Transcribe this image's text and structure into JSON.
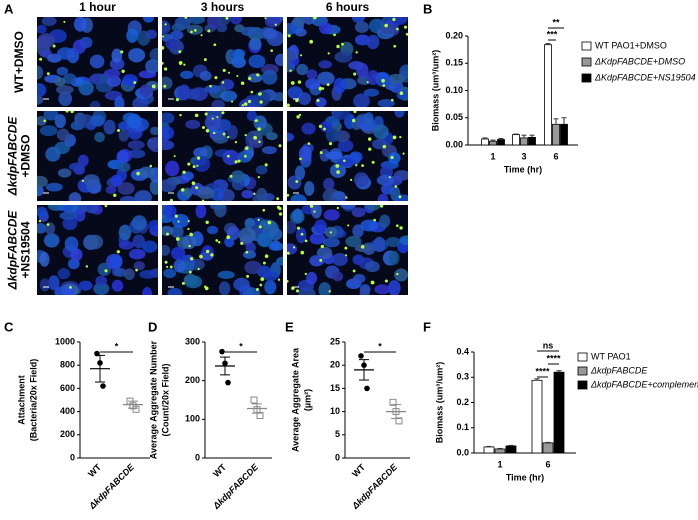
{
  "image_panel": {
    "panel_label": "A",
    "columns": [
      "1 hour",
      "3 hours",
      "6 hours"
    ],
    "rows": [
      [
        "WT+DMSO"
      ],
      [
        "ΔkdpFABCDE",
        "+DMSO"
      ],
      [
        "ΔkdpFABCDE",
        "+NS19504"
      ]
    ]
  },
  "chart_data": [
    {
      "type": "bar",
      "panel_label": "B",
      "ylabel": "Biomass (um³/um²)",
      "xlabel": "Time (hr)",
      "categories": [
        "1",
        "3",
        "6"
      ],
      "series": [
        {
          "name": "WT PAO1+DMSO",
          "color": "#ffffff",
          "values": [
            0.011,
            0.019,
            0.184
          ],
          "errors": [
            0.002,
            0.001,
            0.002
          ]
        },
        {
          "name": "ΔKdpFABCDE+DMSO",
          "color": "#999999",
          "values": [
            0.007,
            0.013,
            0.038
          ],
          "errors": [
            0.002,
            0.005,
            0.01
          ]
        },
        {
          "name": "ΔKdpFABCDE+NS19504",
          "color": "#000000",
          "values": [
            0.01,
            0.014,
            0.038
          ],
          "errors": [
            0.002,
            0.004,
            0.012
          ]
        }
      ],
      "ylim": [
        0,
        0.2
      ],
      "yticks": [
        {
          "value": 0,
          "label": "0.00"
        },
        0.05,
        {
          "value": 0.1,
          "label": "0.10"
        },
        0.15,
        {
          "value": 0.2,
          "label": "0.20"
        }
      ],
      "annotations": [
        "***",
        "**"
      ]
    },
    {
      "type": "dot",
      "panel_label": "C",
      "ylabel": [
        "Attachment",
        "(Bacteria/20x Field)"
      ],
      "categories": [
        "WT",
        "ΔkdpFABCDE"
      ],
      "colors": [
        "#000000",
        "#888888"
      ],
      "points": [
        [
          900,
          820,
          620
        ],
        [
          490,
          450,
          420
        ]
      ],
      "means": [
        770,
        460
      ],
      "sems": [
        115,
        30
      ],
      "ylim": [
        0,
        1000
      ],
      "yticks": [
        0,
        200,
        400,
        600,
        800,
        1000
      ],
      "annotations": [
        "*"
      ]
    },
    {
      "type": "dot",
      "panel_label": "D",
      "ylabel": [
        "Average Aggregate Number",
        "(Count/20x Field)"
      ],
      "categories": [
        "WT",
        "ΔkdpFABCDE"
      ],
      "colors": [
        "#000000",
        "#888888"
      ],
      "points": [
        [
          275,
          245,
          195
        ],
        [
          150,
          125,
          110
        ]
      ],
      "means": [
        238,
        128
      ],
      "sems": [
        23,
        12
      ],
      "ylim": [
        0,
        300
      ],
      "yticks": [
        0,
        100,
        200,
        300
      ],
      "annotations": [
        "*"
      ]
    },
    {
      "type": "dot",
      "panel_label": "E",
      "ylabel": [
        "Average Aggregate Area",
        "(µm²)"
      ],
      "categories": [
        "WT",
        "ΔkdpFABCDE"
      ],
      "colors": [
        "#000000",
        "#888888"
      ],
      "points": [
        [
          22,
          20,
          15
        ],
        [
          12,
          10,
          8
        ]
      ],
      "means": [
        19,
        10
      ],
      "sems": [
        2.2,
        1.5
      ],
      "ylim": [
        0,
        25
      ],
      "yticks": [
        0,
        5,
        10,
        15,
        20,
        25
      ],
      "annotations": [
        "*"
      ]
    },
    {
      "type": "bar",
      "panel_label": "F",
      "ylabel": "Biomass (um³/um²)",
      "xlabel": "Time (hr)",
      "categories": [
        "1",
        "6"
      ],
      "series": [
        {
          "name": "WT PAO1",
          "color": "#ffffff",
          "values": [
            0.024,
            0.288
          ],
          "errors": [
            0.002,
            0.006
          ]
        },
        {
          "name": "ΔkdpFABCDE",
          "color": "#999999",
          "values": [
            0.016,
            0.04
          ],
          "errors": [
            0.002,
            0.002
          ]
        },
        {
          "name": "ΔkdpFABCDE+complement",
          "color": "#000000",
          "values": [
            0.028,
            0.32
          ],
          "errors": [
            0.002,
            0.006
          ]
        }
      ],
      "ylim": [
        0,
        0.4
      ],
      "yticks": [
        {
          "value": 0,
          "label": "0.0"
        },
        0.1,
        0.2,
        0.3,
        0.4
      ],
      "annotations": [
        "****",
        "****",
        "ns"
      ]
    }
  ]
}
